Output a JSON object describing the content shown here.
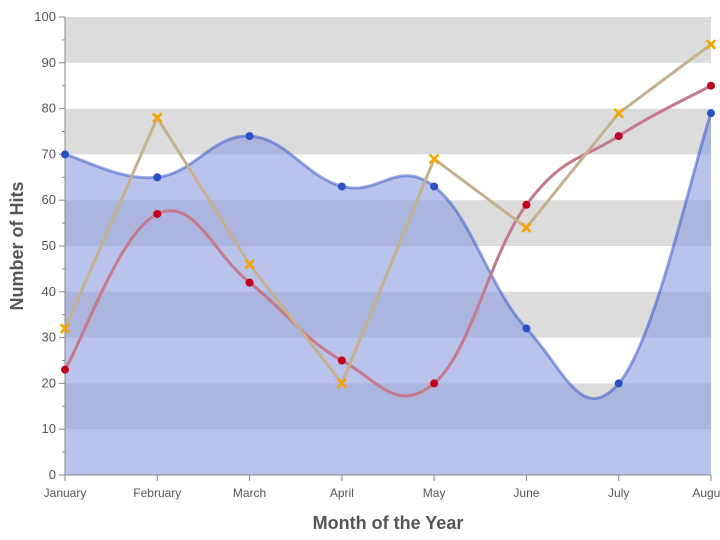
{
  "chart_data": {
    "type": "line",
    "title": "",
    "xlabel": "Month of the Year",
    "ylabel": "Number of Hits",
    "ylim": [
      0,
      100
    ],
    "yticks": [
      0,
      10,
      20,
      30,
      40,
      50,
      60,
      70,
      80,
      90,
      100
    ],
    "grid": "alternating horizontal bands",
    "categories": [
      "January",
      "February",
      "March",
      "April",
      "May",
      "June",
      "July",
      "August"
    ],
    "series": [
      {
        "values": [
          70,
          65,
          74,
          63,
          63,
          32,
          20,
          79
        ],
        "style": "smooth-area",
        "color": "#2b50c8",
        "fill": "#8c9be0",
        "marker": "circle"
      },
      {
        "values": [
          23,
          57,
          42,
          25,
          20,
          59,
          74,
          85
        ],
        "style": "smooth-line",
        "color": "#c0001e",
        "line_color": "#c47a8c",
        "marker": "circle"
      },
      {
        "values": [
          32,
          78,
          46,
          20,
          69,
          54,
          79,
          94
        ],
        "style": "straight-line",
        "color": "#f5a500",
        "line_color": "#c6b08e",
        "marker": "x"
      }
    ],
    "colors": {
      "band_gray": "#dcdcdc",
      "axis": "#888888"
    }
  }
}
